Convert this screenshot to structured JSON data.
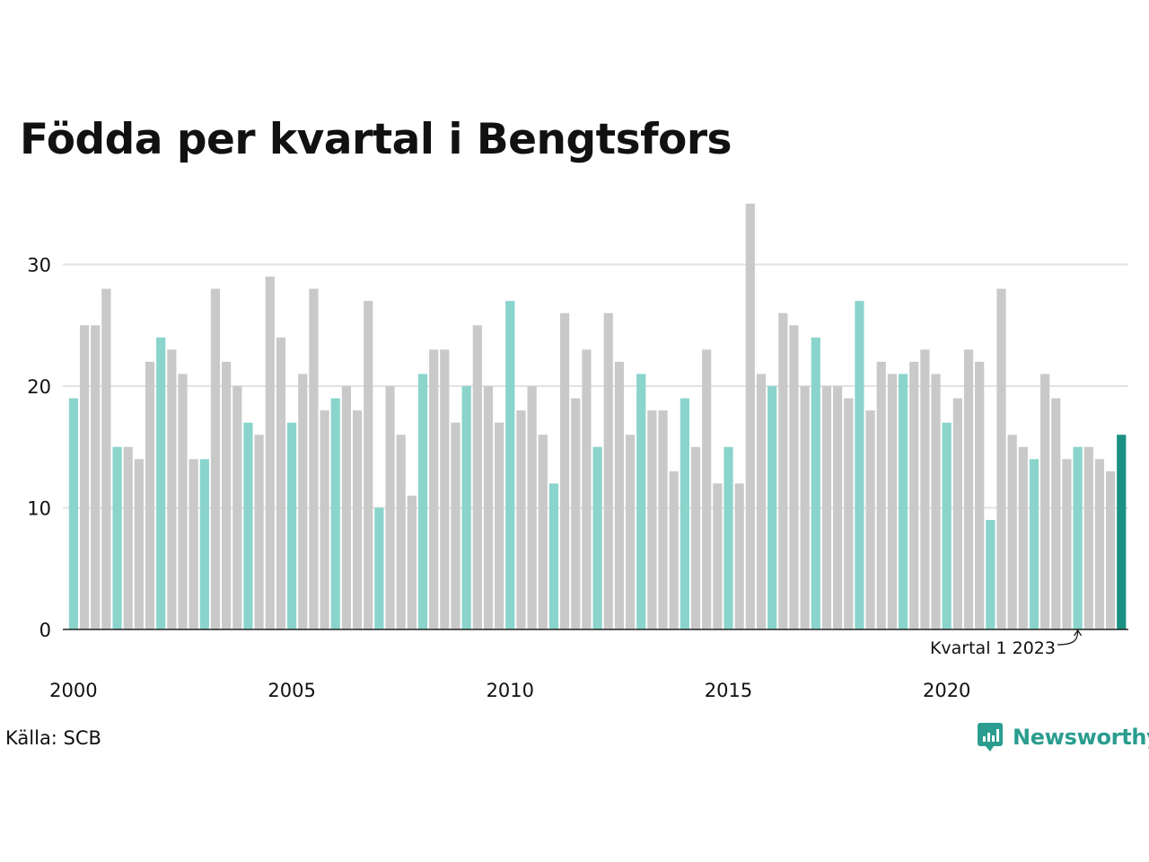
{
  "title": "Födda per kvartal i Bengtsfors",
  "source": "Källa: SCB",
  "brand": "Newsworthy",
  "colors": {
    "q1": "#8ad4cc",
    "other": "#c9c9c9",
    "latest": "#1a9182",
    "grid": "#e2e2e2",
    "axis": "#222222",
    "brand": "#2a9d8f"
  },
  "chart_data": {
    "type": "bar",
    "title": "Födda per kvartal i Bengtsfors",
    "xlabel": "",
    "ylabel": "",
    "ylim": [
      0,
      35
    ],
    "yticks": [
      0,
      10,
      20,
      30
    ],
    "grid": true,
    "x_tick_labels": [
      "2000",
      "2005",
      "2010",
      "2015",
      "2020"
    ],
    "start": "2000 kvartal 1",
    "highlight": "kvartal 1",
    "annotation": "Kvartal 1 2023",
    "values": [
      19,
      25,
      25,
      28,
      15,
      15,
      14,
      22,
      24,
      23,
      21,
      14,
      14,
      28,
      22,
      20,
      17,
      16,
      29,
      24,
      17,
      21,
      28,
      18,
      19,
      20,
      18,
      27,
      10,
      20,
      16,
      11,
      21,
      23,
      23,
      17,
      20,
      25,
      20,
      17,
      27,
      18,
      20,
      16,
      12,
      26,
      19,
      23,
      15,
      26,
      22,
      16,
      21,
      18,
      18,
      13,
      19,
      15,
      23,
      12,
      15,
      12,
      35,
      21,
      20,
      26,
      25,
      20,
      24,
      20,
      20,
      19,
      27,
      18,
      22,
      21,
      21,
      22,
      23,
      21,
      17,
      19,
      23,
      22,
      9,
      28,
      16,
      15,
      14,
      21,
      19,
      14,
      15,
      15,
      14,
      13,
      16
    ]
  }
}
